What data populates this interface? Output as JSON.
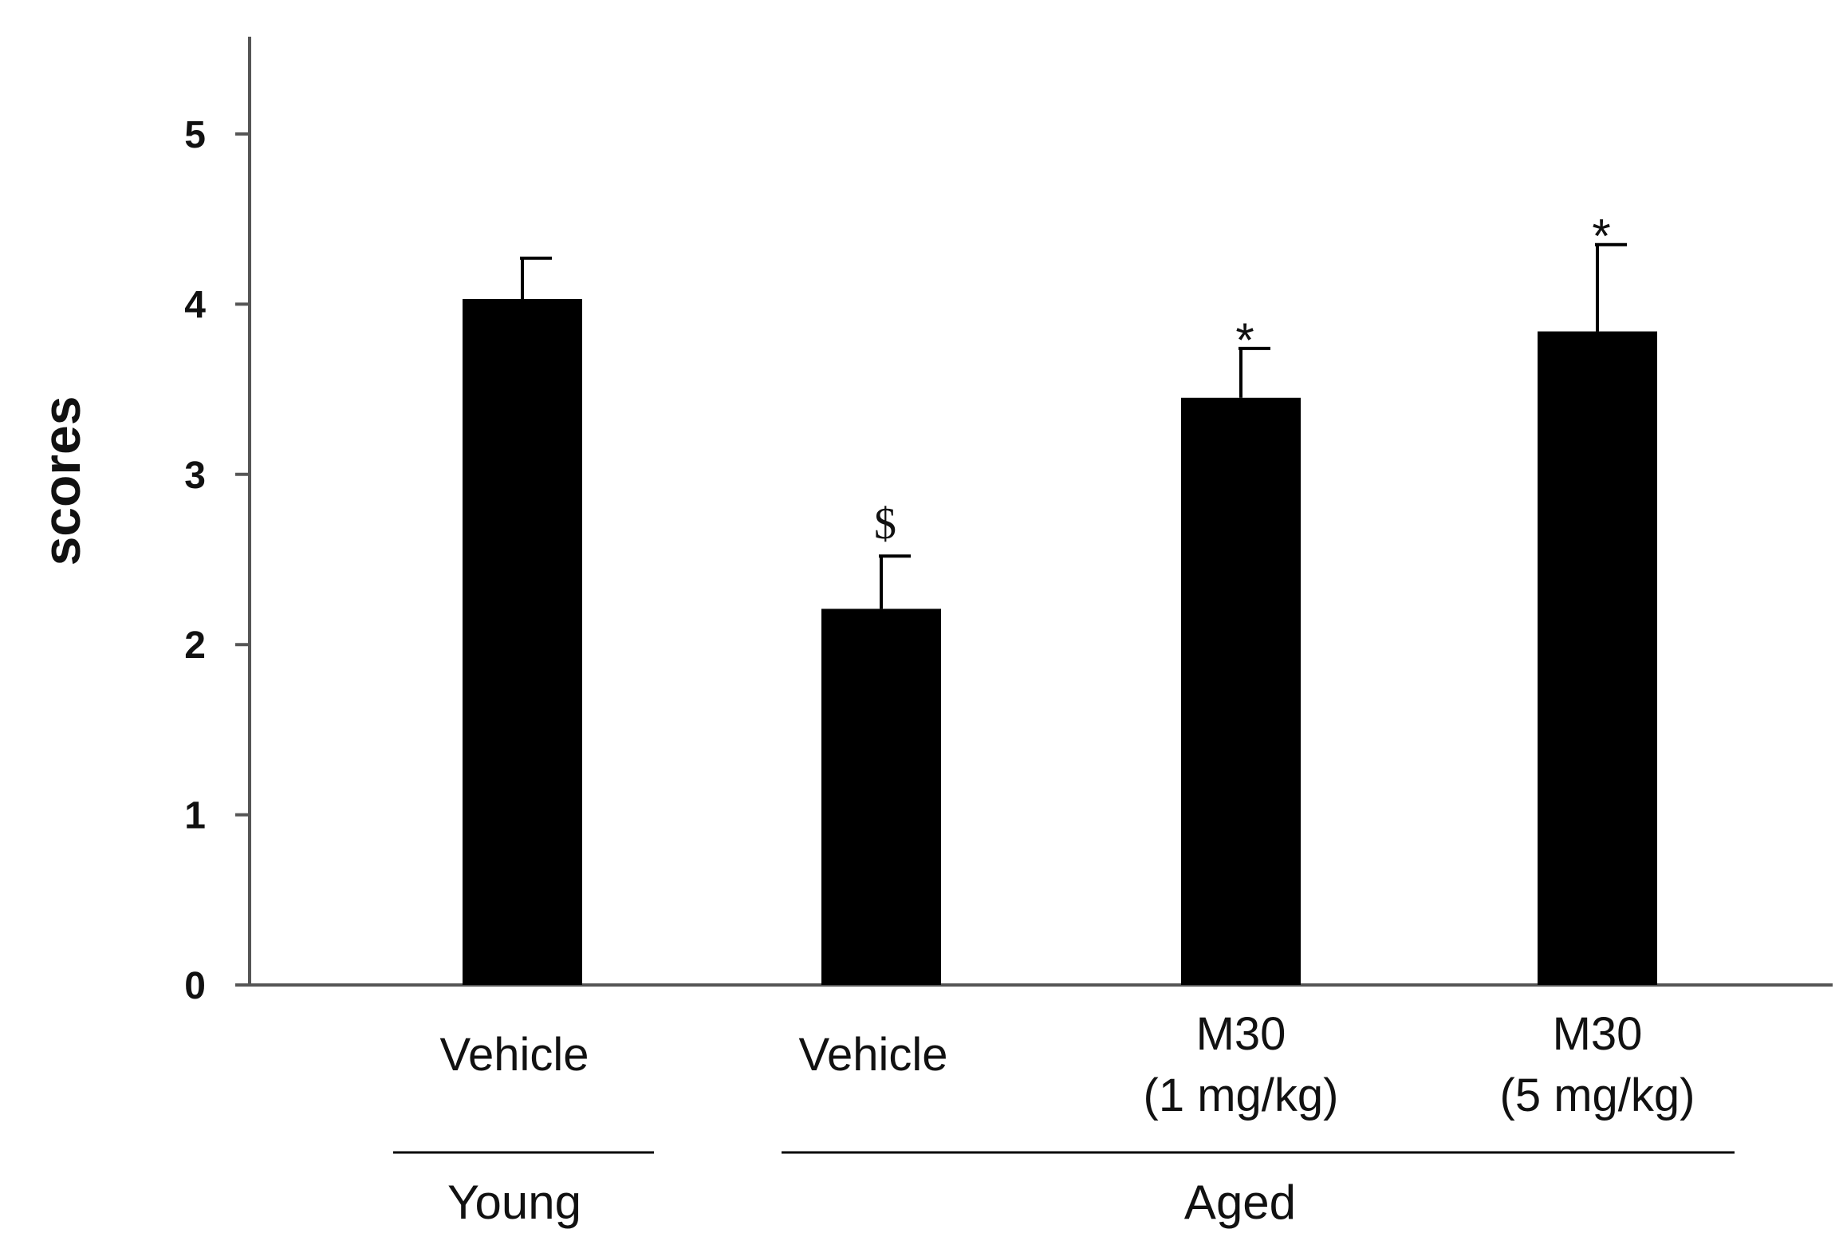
{
  "chart_data": {
    "type": "bar",
    "title": "",
    "xlabel": "",
    "ylabel": "scores",
    "ylim": [
      0,
      5.5
    ],
    "yticks": [
      0,
      1,
      2,
      3,
      4,
      5
    ],
    "categories": [
      {
        "line1": "Vehicle",
        "line2": ""
      },
      {
        "line1": "Vehicle",
        "line2": ""
      },
      {
        "line1": "M30",
        "line2": "(1 mg/kg)"
      },
      {
        "line1": "M30",
        "line2": "(5 mg/kg)"
      }
    ],
    "values": [
      4.03,
      2.21,
      3.45,
      3.84
    ],
    "errors": [
      0.24,
      0.31,
      0.29,
      0.51
    ],
    "annotations": [
      "",
      "$",
      "*",
      "*"
    ],
    "groups": [
      {
        "label": "Young",
        "categories": [
          0
        ]
      },
      {
        "label": "Aged",
        "categories": [
          1,
          2,
          3
        ]
      }
    ],
    "bar_color": "#000000",
    "grid": false
  }
}
